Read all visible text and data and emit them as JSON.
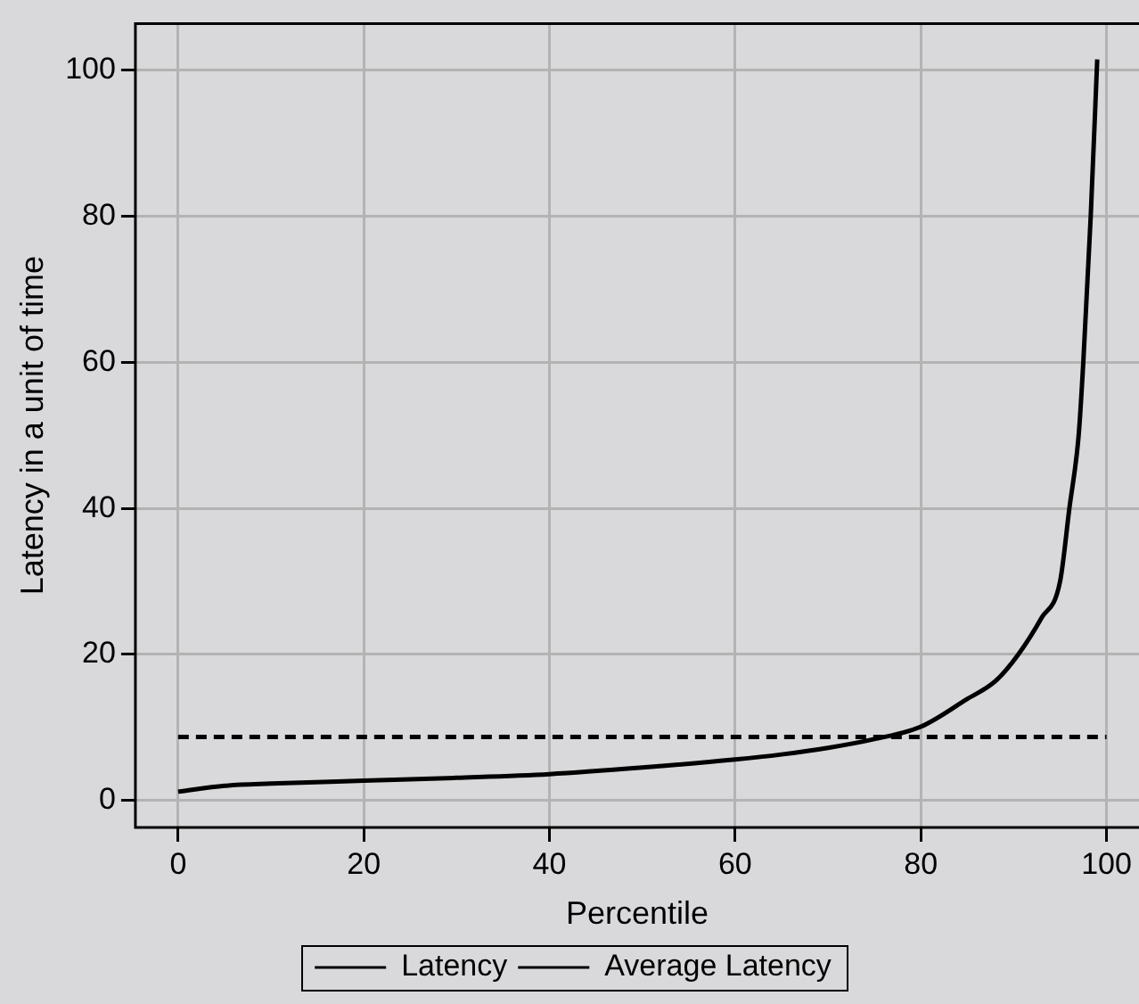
{
  "chart_data": {
    "type": "line",
    "xlabel": "Percentile",
    "ylabel": "Latency in a unit of time",
    "xlim": [
      -4.6,
      103.5
    ],
    "ylim": [
      -3.7,
      106.4
    ],
    "xticks": [
      0,
      20,
      40,
      60,
      80,
      100
    ],
    "yticks": [
      0,
      20,
      40,
      60,
      80,
      100
    ],
    "grid": true,
    "legend": "bottom",
    "marker": "none",
    "series": [
      {
        "name": "Latency",
        "color": "#000000",
        "line_style": "solid",
        "x": [
          0,
          5,
          10,
          20,
          30,
          40,
          50,
          60,
          65,
          70,
          75,
          80,
          85,
          88,
          90.5,
          93,
          95,
          96,
          97,
          97.5,
          98.3,
          99
        ],
        "values": [
          1.2,
          2.0,
          2.3,
          2.7,
          3.1,
          3.6,
          4.5,
          5.6,
          6.3,
          7.2,
          8.4,
          10.1,
          13.9,
          16.3,
          20,
          25,
          30,
          40,
          50,
          60,
          80,
          101.5
        ]
      },
      {
        "name": "Average Latency",
        "color": "#000000",
        "line_style": "dashed",
        "x": [
          0,
          100
        ],
        "values": [
          8.7,
          8.7
        ]
      }
    ]
  }
}
